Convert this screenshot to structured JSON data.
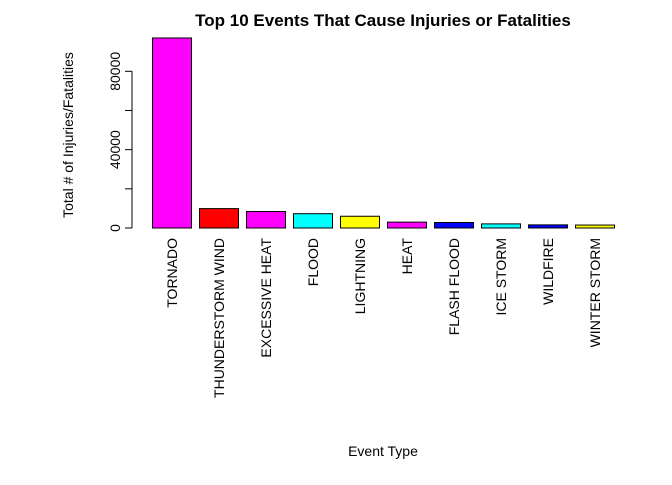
{
  "chart_data": {
    "type": "bar",
    "title": "Top 10 Events That Cause Injuries or Fatalities",
    "xlabel": "Event Type",
    "ylabel": "Total # of Injuries/Fatalities",
    "categories": [
      "TORNADO",
      "THUNDERSTORM WIND",
      "EXCESSIVE HEAT",
      "FLOOD",
      "LIGHTNING",
      "HEAT",
      "FLASH FLOOD",
      "ICE STORM",
      "WILDFIRE",
      "WINTER STORM"
    ],
    "values": [
      97000,
      9900,
      8400,
      7300,
      6000,
      3000,
      2800,
      2100,
      1600,
      1500
    ],
    "colors": [
      "#FF00FF",
      "#FF0000",
      "#FF00FF",
      "#00FFFF",
      "#FFFF00",
      "#FF00FF",
      "#0000FF",
      "#00FFFF",
      "#0000FF",
      "#FFFF00"
    ],
    "ylim": [
      0,
      97000
    ],
    "yticks": [
      0,
      40000,
      80000
    ],
    "ytick_labels": [
      "0",
      "40000",
      "80000"
    ],
    "grid": false,
    "legend": "none"
  }
}
